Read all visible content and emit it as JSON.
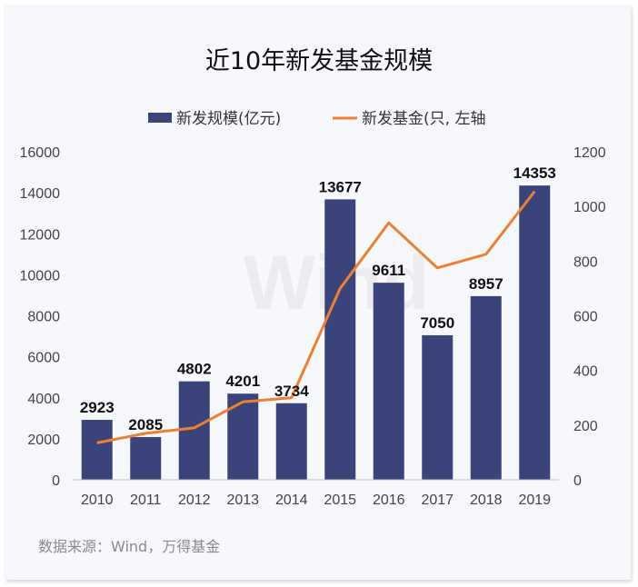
{
  "chart_data": {
    "type": "bar",
    "title": "近10年新发基金规模",
    "categories": [
      "2010",
      "2011",
      "2012",
      "2013",
      "2014",
      "2015",
      "2016",
      "2017",
      "2018",
      "2019"
    ],
    "series": [
      {
        "name": "新发规模(亿元)",
        "type": "bar",
        "axis": "left",
        "color": "#3a437a",
        "values": [
          2923,
          2085,
          4802,
          4201,
          3734,
          13677,
          9611,
          7050,
          8957,
          14353
        ],
        "labels": [
          "2923",
          "2085",
          "4802",
          "4201",
          "3734",
          "13677",
          "9611",
          "7050",
          "8957",
          "14353"
        ]
      },
      {
        "name": "新发基金(只, 左轴",
        "type": "line",
        "axis": "right",
        "color": "#f08030",
        "values": [
          135,
          170,
          190,
          285,
          300,
          700,
          940,
          775,
          825,
          1055
        ]
      }
    ],
    "y_left": {
      "min": 0,
      "max": 16000,
      "ticks": [
        "0",
        "2000",
        "4000",
        "6000",
        "8000",
        "10000",
        "12000",
        "14000",
        "16000"
      ]
    },
    "y_right": {
      "min": 0,
      "max": 1200,
      "ticks": [
        "0",
        "200",
        "400",
        "600",
        "800",
        "1000",
        "1200"
      ]
    },
    "legend_position": "top",
    "watermark": "Wind",
    "source": "数据来源：Wind，万得基金"
  }
}
